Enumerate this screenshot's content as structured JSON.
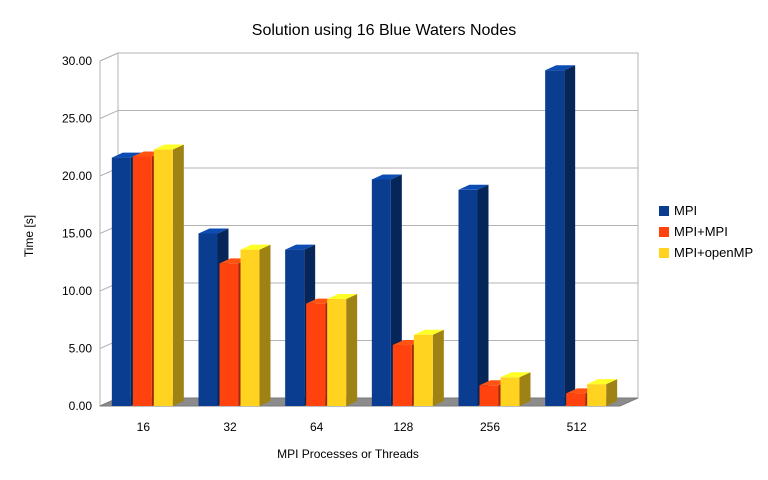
{
  "chart_data": {
    "type": "bar",
    "title": "Solution using 16 Blue Waters Nodes",
    "xlabel": "MPI Processes or Threads",
    "ylabel": "Time [s]",
    "categories": [
      "16",
      "32",
      "64",
      "128",
      "256",
      "512"
    ],
    "ylim": [
      0,
      30
    ],
    "yticks": [
      "0.00",
      "5.00",
      "10.00",
      "15.00",
      "20.00",
      "25.00",
      "30.00"
    ],
    "grid": true,
    "three_d": true,
    "legend_position": "right",
    "series": [
      {
        "name": "MPI",
        "color": "#0a3d8f",
        "values": [
          21.6,
          15.0,
          13.6,
          19.7,
          18.8,
          29.2
        ]
      },
      {
        "name": "MPI+MPI",
        "color": "#ff420e",
        "values": [
          21.7,
          12.4,
          8.9,
          5.3,
          1.8,
          1.1
        ]
      },
      {
        "name": "MPI+openMP",
        "color": "#ffd320",
        "values": [
          22.3,
          13.6,
          9.3,
          6.2,
          2.5,
          1.9
        ]
      }
    ]
  }
}
